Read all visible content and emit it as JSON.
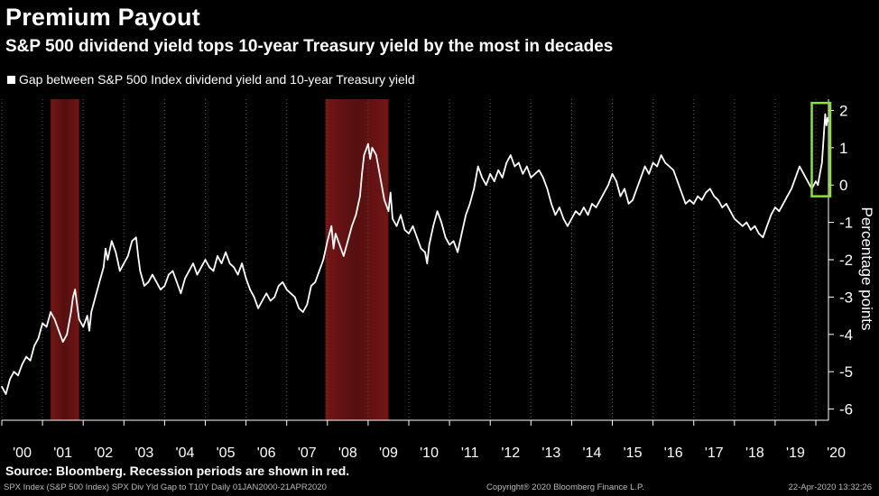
{
  "header": {
    "title": "Premium Payout",
    "subtitle": "S&P 500 dividend yield tops 10-year Treasury yield by the most in decades",
    "legend_label": "Gap between S&P 500 Index dividend yield and 10-year Treasury yield"
  },
  "footer": {
    "source": "Source: Bloomberg. Recession periods are shown in red.",
    "ticker": "SPX Index (S&P 500 Index) SPX Div Yld Gap to T10Y  Daily 01JAN2000-21APR2020",
    "copyright": "Copyright® 2020 Bloomberg Finance L.P.",
    "timestamp": "22-Apr-2020 13:32:26"
  },
  "colors": {
    "background": "#000000",
    "line": "#ffffff",
    "recession": "#7a1616",
    "highlight_box": "#8ee03c",
    "grid": "#555555"
  },
  "chart_data": {
    "type": "line",
    "title": "Premium Payout",
    "subtitle": "S&P 500 dividend yield tops 10-year Treasury yield by the most in decades",
    "ylabel": "Percentage points",
    "ylim": [
      -6.3,
      2.3
    ],
    "y_ticks": [
      "2",
      "1",
      "0",
      "-1",
      "-2",
      "-3",
      "-4",
      "-5",
      "-6"
    ],
    "x_tick_labels": [
      "'00",
      "'01",
      "'02",
      "'03",
      "'04",
      "'05",
      "'06",
      "'07",
      "'08",
      "'09",
      "'10",
      "'11",
      "'12",
      "'13",
      "'14",
      "'15",
      "'16",
      "'17",
      "'18",
      "'19",
      "'20"
    ],
    "xlim": [
      2000.0,
      2020.31
    ],
    "grid": "vertical dotted",
    "legend_position": "top-left",
    "recessions": [
      {
        "start": 2001.2,
        "end": 2001.9
      },
      {
        "start": 2007.95,
        "end": 2009.5
      }
    ],
    "highlight": {
      "start": 2019.9,
      "end": 2020.31,
      "ymin": -0.3,
      "ymax": 2.2
    },
    "series": [
      {
        "name": "Gap between S&P 500 Index dividend yield and 10-year Treasury yield",
        "points": [
          [
            2000.0,
            -5.4
          ],
          [
            2000.1,
            -5.6
          ],
          [
            2000.2,
            -5.2
          ],
          [
            2000.3,
            -5.0
          ],
          [
            2000.4,
            -5.1
          ],
          [
            2000.5,
            -4.8
          ],
          [
            2000.6,
            -4.6
          ],
          [
            2000.7,
            -4.7
          ],
          [
            2000.8,
            -4.3
          ],
          [
            2000.9,
            -4.1
          ],
          [
            2001.0,
            -3.7
          ],
          [
            2001.1,
            -3.8
          ],
          [
            2001.2,
            -3.4
          ],
          [
            2001.3,
            -3.6
          ],
          [
            2001.4,
            -3.9
          ],
          [
            2001.5,
            -4.2
          ],
          [
            2001.6,
            -4.0
          ],
          [
            2001.7,
            -3.4
          ],
          [
            2001.75,
            -3.0
          ],
          [
            2001.8,
            -2.8
          ],
          [
            2001.85,
            -3.2
          ],
          [
            2001.9,
            -3.6
          ],
          [
            2002.0,
            -3.8
          ],
          [
            2002.1,
            -3.5
          ],
          [
            2002.15,
            -3.9
          ],
          [
            2002.2,
            -3.4
          ],
          [
            2002.3,
            -3.0
          ],
          [
            2002.4,
            -2.6
          ],
          [
            2002.5,
            -2.2
          ],
          [
            2002.55,
            -1.7
          ],
          [
            2002.6,
            -2.0
          ],
          [
            2002.7,
            -1.5
          ],
          [
            2002.8,
            -1.8
          ],
          [
            2002.9,
            -2.3
          ],
          [
            2003.0,
            -2.1
          ],
          [
            2003.1,
            -1.9
          ],
          [
            2003.2,
            -1.5
          ],
          [
            2003.3,
            -1.4
          ],
          [
            2003.35,
            -1.9
          ],
          [
            2003.4,
            -2.3
          ],
          [
            2003.5,
            -2.7
          ],
          [
            2003.6,
            -2.6
          ],
          [
            2003.7,
            -2.4
          ],
          [
            2003.8,
            -2.6
          ],
          [
            2003.9,
            -2.8
          ],
          [
            2004.0,
            -2.7
          ],
          [
            2004.1,
            -2.4
          ],
          [
            2004.2,
            -2.3
          ],
          [
            2004.3,
            -2.6
          ],
          [
            2004.4,
            -2.9
          ],
          [
            2004.5,
            -2.5
          ],
          [
            2004.6,
            -2.3
          ],
          [
            2004.7,
            -2.1
          ],
          [
            2004.8,
            -2.4
          ],
          [
            2004.9,
            -2.2
          ],
          [
            2005.0,
            -2.0
          ],
          [
            2005.1,
            -2.2
          ],
          [
            2005.2,
            -2.3
          ],
          [
            2005.3,
            -1.9
          ],
          [
            2005.4,
            -2.1
          ],
          [
            2005.5,
            -1.8
          ],
          [
            2005.6,
            -2.1
          ],
          [
            2005.7,
            -2.2
          ],
          [
            2005.8,
            -2.4
          ],
          [
            2005.9,
            -2.1
          ],
          [
            2006.0,
            -2.5
          ],
          [
            2006.1,
            -2.8
          ],
          [
            2006.2,
            -3.0
          ],
          [
            2006.3,
            -3.3
          ],
          [
            2006.4,
            -3.1
          ],
          [
            2006.5,
            -2.9
          ],
          [
            2006.6,
            -3.1
          ],
          [
            2006.7,
            -3.0
          ],
          [
            2006.8,
            -2.7
          ],
          [
            2006.9,
            -2.6
          ],
          [
            2007.0,
            -2.8
          ],
          [
            2007.1,
            -2.9
          ],
          [
            2007.2,
            -3.0
          ],
          [
            2007.3,
            -3.3
          ],
          [
            2007.4,
            -3.4
          ],
          [
            2007.5,
            -3.2
          ],
          [
            2007.6,
            -2.7
          ],
          [
            2007.7,
            -2.6
          ],
          [
            2007.8,
            -2.3
          ],
          [
            2007.9,
            -2.0
          ],
          [
            2008.0,
            -1.5
          ],
          [
            2008.1,
            -1.1
          ],
          [
            2008.15,
            -1.7
          ],
          [
            2008.2,
            -1.3
          ],
          [
            2008.3,
            -1.6
          ],
          [
            2008.4,
            -1.9
          ],
          [
            2008.5,
            -1.5
          ],
          [
            2008.6,
            -1.1
          ],
          [
            2008.7,
            -0.8
          ],
          [
            2008.8,
            -0.3
          ],
          [
            2008.85,
            0.3
          ],
          [
            2008.9,
            0.8
          ],
          [
            2009.0,
            1.1
          ],
          [
            2009.05,
            0.7
          ],
          [
            2009.1,
            1.0
          ],
          [
            2009.2,
            0.8
          ],
          [
            2009.3,
            0.2
          ],
          [
            2009.4,
            -0.4
          ],
          [
            2009.5,
            -0.7
          ],
          [
            2009.55,
            -0.2
          ],
          [
            2009.6,
            -0.9
          ],
          [
            2009.7,
            -1.1
          ],
          [
            2009.8,
            -0.8
          ],
          [
            2009.9,
            -1.2
          ],
          [
            2010.0,
            -1.3
          ],
          [
            2010.1,
            -1.1
          ],
          [
            2010.2,
            -1.4
          ],
          [
            2010.3,
            -1.7
          ],
          [
            2010.4,
            -1.8
          ],
          [
            2010.45,
            -2.1
          ],
          [
            2010.5,
            -1.6
          ],
          [
            2010.6,
            -1.1
          ],
          [
            2010.7,
            -0.7
          ],
          [
            2010.8,
            -1.0
          ],
          [
            2010.9,
            -1.4
          ],
          [
            2011.0,
            -1.6
          ],
          [
            2011.1,
            -1.5
          ],
          [
            2011.2,
            -1.8
          ],
          [
            2011.3,
            -1.3
          ],
          [
            2011.4,
            -0.8
          ],
          [
            2011.5,
            -0.5
          ],
          [
            2011.6,
            -0.1
          ],
          [
            2011.7,
            0.5
          ],
          [
            2011.8,
            0.2
          ],
          [
            2011.9,
            0.0
          ],
          [
            2012.0,
            0.3
          ],
          [
            2012.1,
            0.1
          ],
          [
            2012.2,
            0.4
          ],
          [
            2012.3,
            0.2
          ],
          [
            2012.4,
            0.6
          ],
          [
            2012.5,
            0.8
          ],
          [
            2012.6,
            0.5
          ],
          [
            2012.7,
            0.6
          ],
          [
            2012.8,
            0.3
          ],
          [
            2012.9,
            0.5
          ],
          [
            2013.0,
            0.2
          ],
          [
            2013.1,
            0.3
          ],
          [
            2013.2,
            0.4
          ],
          [
            2013.3,
            0.2
          ],
          [
            2013.4,
            -0.1
          ],
          [
            2013.5,
            -0.5
          ],
          [
            2013.6,
            -0.8
          ],
          [
            2013.7,
            -0.6
          ],
          [
            2013.8,
            -0.9
          ],
          [
            2013.9,
            -1.1
          ],
          [
            2014.0,
            -0.9
          ],
          [
            2014.1,
            -0.7
          ],
          [
            2014.2,
            -0.8
          ],
          [
            2014.3,
            -0.6
          ],
          [
            2014.4,
            -0.8
          ],
          [
            2014.5,
            -0.5
          ],
          [
            2014.6,
            -0.6
          ],
          [
            2014.7,
            -0.4
          ],
          [
            2014.8,
            -0.2
          ],
          [
            2014.9,
            0.0
          ],
          [
            2015.0,
            0.3
          ],
          [
            2015.1,
            0.1
          ],
          [
            2015.2,
            -0.3
          ],
          [
            2015.3,
            -0.1
          ],
          [
            2015.4,
            -0.5
          ],
          [
            2015.5,
            -0.4
          ],
          [
            2015.6,
            -0.1
          ],
          [
            2015.7,
            0.2
          ],
          [
            2015.8,
            0.5
          ],
          [
            2015.9,
            0.3
          ],
          [
            2016.0,
            0.6
          ],
          [
            2016.1,
            0.5
          ],
          [
            2016.2,
            0.8
          ],
          [
            2016.3,
            0.6
          ],
          [
            2016.4,
            0.5
          ],
          [
            2016.5,
            0.4
          ],
          [
            2016.6,
            0.1
          ],
          [
            2016.7,
            -0.2
          ],
          [
            2016.8,
            -0.5
          ],
          [
            2016.9,
            -0.4
          ],
          [
            2017.0,
            -0.5
          ],
          [
            2017.1,
            -0.3
          ],
          [
            2017.2,
            -0.4
          ],
          [
            2017.3,
            -0.2
          ],
          [
            2017.4,
            -0.1
          ],
          [
            2017.5,
            -0.3
          ],
          [
            2017.6,
            -0.4
          ],
          [
            2017.7,
            -0.6
          ],
          [
            2017.8,
            -0.5
          ],
          [
            2017.9,
            -0.7
          ],
          [
            2018.0,
            -0.9
          ],
          [
            2018.1,
            -1.0
          ],
          [
            2018.2,
            -1.1
          ],
          [
            2018.3,
            -1.0
          ],
          [
            2018.4,
            -1.2
          ],
          [
            2018.5,
            -1.1
          ],
          [
            2018.6,
            -1.3
          ],
          [
            2018.7,
            -1.4
          ],
          [
            2018.8,
            -1.1
          ],
          [
            2018.9,
            -0.8
          ],
          [
            2019.0,
            -0.6
          ],
          [
            2019.1,
            -0.7
          ],
          [
            2019.2,
            -0.5
          ],
          [
            2019.3,
            -0.3
          ],
          [
            2019.4,
            -0.1
          ],
          [
            2019.5,
            0.2
          ],
          [
            2019.6,
            0.5
          ],
          [
            2019.7,
            0.3
          ],
          [
            2019.8,
            0.1
          ],
          [
            2019.9,
            -0.1
          ],
          [
            2020.0,
            0.1
          ],
          [
            2020.05,
            0.0
          ],
          [
            2020.1,
            0.3
          ],
          [
            2020.15,
            0.6
          ],
          [
            2020.2,
            1.4
          ],
          [
            2020.23,
            1.9
          ],
          [
            2020.26,
            1.6
          ],
          [
            2020.29,
            1.8
          ],
          [
            2020.31,
            1.7
          ]
        ]
      }
    ]
  }
}
